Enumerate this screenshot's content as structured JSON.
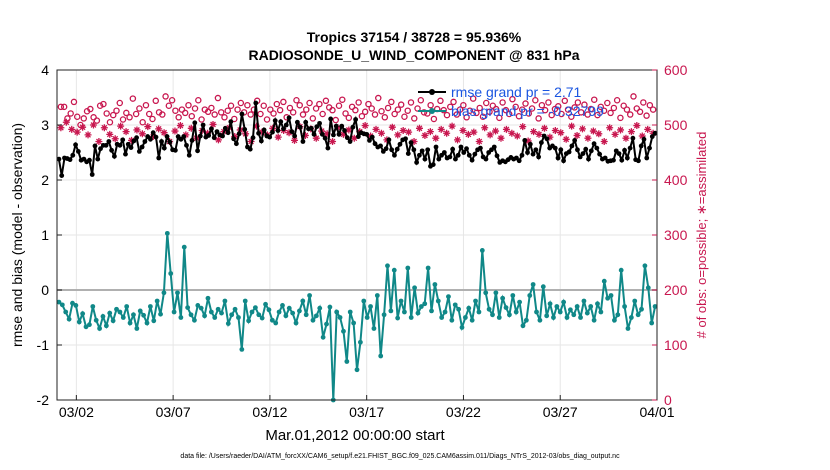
{
  "chart_data": {
    "type": "line",
    "title_line1": "Tropics 37154 / 38728 = 95.936%",
    "title_line2": "RADIOSONDE_U_WIND_COMPONENT @ 831 hPa",
    "xlabel": "Mar.01,2012 00:00:00 start",
    "ylabel_left": "rmse and bias (model - observation)",
    "ylabel_right": "# of obs: o=possible; ∗=assimilated",
    "footer": "data file: /Users/raeder/DAI/ATM_forcXX/CAM6_setup/f.e21.FHIST_BGC.f09_025.CAM6assim.011/Diags_NTrS_2012-03/obs_diag_output.nc",
    "xlim": [
      0,
      31
    ],
    "ylim_left": [
      -2,
      4
    ],
    "ylim_right": [
      0,
      600
    ],
    "xticks": [
      1,
      6,
      11,
      16,
      21,
      26,
      31
    ],
    "xtick_labels": [
      "03/02",
      "03/07",
      "03/12",
      "03/17",
      "03/22",
      "03/27",
      "04/01"
    ],
    "yticks_left": [
      -2,
      -1,
      0,
      1,
      2,
      3,
      4
    ],
    "yticks_right": [
      0,
      100,
      200,
      300,
      400,
      500,
      600
    ],
    "zero_line": 0,
    "legend": [
      {
        "label": "rmse grand pr = 2.71",
        "color": "#000000"
      },
      {
        "label": "bias grand pr = -0.32799",
        "color": "#108888"
      }
    ],
    "colors": {
      "rmse": "#000000",
      "bias": "#108888",
      "obs": "#c8174f",
      "zero": "#b0b0b0"
    },
    "rmse": [
      2.38,
      2.08,
      2.4,
      2.39,
      2.37,
      2.45,
      2.64,
      2.52,
      2.36,
      2.38,
      2.33,
      2.36,
      2.1,
      2.62,
      2.38,
      2.57,
      2.63,
      2.63,
      2.7,
      2.54,
      2.43,
      2.65,
      2.63,
      2.73,
      2.47,
      2.65,
      2.59,
      2.71,
      2.77,
      2.52,
      2.6,
      2.7,
      2.79,
      2.74,
      2.86,
      2.78,
      2.4,
      2.7,
      2.58,
      2.79,
      2.69,
      2.55,
      2.54,
      2.79,
      2.74,
      2.79,
      2.63,
      2.45,
      2.72,
      3.04,
      2.53,
      2.8,
      3.0,
      2.78,
      2.81,
      2.93,
      2.77,
      2.88,
      2.82,
      2.8,
      2.94,
      2.86,
      3.06,
      2.75,
      2.66,
      2.84,
      3.2,
      2.92,
      2.6,
      2.56,
      2.77,
      3.4,
      2.85,
      2.71,
      2.91,
      2.8,
      2.78,
      2.87,
      3.08,
      2.9,
      3.06,
      2.93,
      3.0,
      3.13,
      2.88,
      2.8,
      3.05,
      2.96,
      2.7,
      3.05,
      2.93,
      2.94,
      2.83,
      2.97,
      3.03,
      2.83,
      2.76,
      2.58,
      3.11,
      2.82,
      2.98,
      2.83,
      2.98,
      2.9,
      2.77,
      2.7,
      2.96,
      3.1,
      2.79,
      2.86,
      2.84,
      2.83,
      2.72,
      2.78,
      2.66,
      2.6,
      2.62,
      2.52,
      2.57,
      2.73,
      2.55,
      2.45,
      2.56,
      2.65,
      2.73,
      2.75,
      2.48,
      2.68,
      2.55,
      2.32,
      2.45,
      2.53,
      2.38,
      2.55,
      2.25,
      2.28,
      2.6,
      2.38,
      2.45,
      2.5,
      2.4,
      2.42,
      2.56,
      2.38,
      2.45,
      2.6,
      2.5,
      2.57,
      2.45,
      2.36,
      2.47,
      2.55,
      2.58,
      2.42,
      2.38,
      2.5,
      2.55,
      2.6,
      2.44,
      2.32,
      2.35,
      2.33,
      2.37,
      2.41,
      2.38,
      2.4,
      2.35,
      2.45,
      2.72,
      2.5,
      2.65,
      2.47,
      2.55,
      2.42,
      2.68,
      2.8,
      2.75,
      2.58,
      2.62,
      2.58,
      2.4,
      2.55,
      2.35,
      2.48,
      2.51,
      2.62,
      2.72,
      2.55,
      2.42,
      2.48,
      2.56,
      2.38,
      2.53,
      2.66,
      2.58,
      2.47,
      2.38,
      2.4,
      2.34,
      2.35,
      2.36,
      2.53,
      2.48,
      2.36,
      2.54,
      2.4,
      2.58,
      2.76,
      2.37,
      2.35,
      2.62,
      2.74,
      2.4,
      2.58,
      2.79,
      2.85
    ],
    "bias": [
      -0.22,
      -0.27,
      -0.4,
      -0.53,
      -0.24,
      -0.28,
      -0.58,
      -0.43,
      -0.67,
      -0.63,
      -0.3,
      -0.55,
      -0.7,
      -0.48,
      -0.65,
      -0.42,
      -0.56,
      -0.35,
      -0.4,
      -0.5,
      -0.3,
      -0.6,
      -0.45,
      -0.7,
      -0.38,
      -0.46,
      -0.6,
      -0.3,
      -0.56,
      -0.2,
      -0.44,
      -0.05,
      1.03,
      0.3,
      -0.4,
      -0.05,
      -0.5,
      0.78,
      -0.32,
      -0.45,
      -0.55,
      -0.28,
      -0.33,
      -0.47,
      -0.15,
      -0.4,
      -0.5,
      -0.35,
      -0.42,
      -0.2,
      -0.61,
      -0.45,
      -0.35,
      -0.5,
      -1.08,
      -0.2,
      -0.56,
      -0.4,
      -0.32,
      -0.45,
      -0.51,
      -0.26,
      -0.36,
      -0.55,
      -0.6,
      -0.4,
      -0.28,
      -0.47,
      -0.33,
      -0.42,
      -0.6,
      -0.38,
      -0.2,
      -0.45,
      -0.1,
      -0.55,
      -0.47,
      -0.33,
      -0.86,
      -0.62,
      -0.31,
      -2.0,
      -0.4,
      -0.5,
      -0.75,
      -1.3,
      -0.4,
      -0.6,
      -1.45,
      -0.95,
      -0.2,
      -0.5,
      -0.3,
      -0.7,
      -0.1,
      -1.2,
      -0.45,
      0.44,
      -0.38,
      0.36,
      -0.51,
      -0.2,
      -0.4,
      0.4,
      -0.5,
      0.04,
      -0.42,
      -0.3,
      -0.25,
      0.4,
      -0.38,
      0.1,
      -0.2,
      -0.5,
      -0.4,
      -0.12,
      -0.55,
      -0.27,
      -0.35,
      -0.68,
      -0.5,
      -0.33,
      -0.55,
      -0.2,
      -0.4,
      0.72,
      -0.05,
      -0.35,
      -0.45,
      -0.05,
      -0.5,
      -0.15,
      -0.32,
      -0.45,
      -0.1,
      -0.4,
      -0.22,
      -0.65,
      -0.55,
      -0.1,
      0.1,
      -0.4,
      -0.55,
      0.06,
      -0.47,
      -0.25,
      -0.5,
      -0.3,
      -0.4,
      -0.22,
      -0.5,
      -0.36,
      -0.45,
      -0.3,
      -0.5,
      -0.2,
      -0.42,
      -0.3,
      -0.55,
      -0.25,
      -0.4,
      0.16,
      -0.15,
      -0.1,
      -0.55,
      -0.45,
      0.36,
      -0.3,
      -0.7,
      -0.5,
      -0.2,
      -0.45,
      -0.35,
      0.44,
      0.04,
      -0.6,
      -0.3
    ],
    "obs_possible": [
      533,
      533,
      512,
      521,
      542,
      515,
      500,
      512,
      525,
      529,
      514,
      508,
      535,
      538,
      521,
      505,
      518,
      526,
      540,
      510,
      522,
      514,
      548,
      520,
      530,
      505,
      536,
      520,
      511,
      544,
      523,
      519,
      552,
      535,
      545,
      526,
      514,
      528,
      522,
      536,
      516,
      530,
      545,
      510,
      528,
      524,
      531,
      519,
      549,
      523,
      514,
      526,
      535,
      511,
      528,
      540,
      523,
      536,
      519,
      528,
      544,
      520,
      535,
      510,
      528,
      521,
      538,
      527,
      542,
      514,
      531,
      523,
      545,
      536,
      519,
      528,
      540,
      512,
      530,
      538,
      520,
      544,
      532,
      527,
      509,
      535,
      546,
      521,
      513,
      533,
      527,
      541,
      516,
      524,
      538,
      530,
      519,
      549,
      525,
      514,
      531,
      542,
      520,
      528,
      537,
      515,
      526,
      541,
      512,
      530,
      545,
      523,
      521,
      536,
      511,
      529,
      544,
      527,
      518,
      533,
      542,
      519,
      528,
      536,
      514,
      526,
      548,
      522,
      531,
      515,
      540,
      524,
      535,
      529,
      513,
      541,
      527,
      520,
      547,
      533,
      516,
      528,
      539,
      521,
      530,
      545,
      512,
      536,
      527,
      541,
      518,
      529,
      534,
      520,
      544,
      528,
      515,
      532,
      541,
      523,
      537,
      519,
      529,
      546,
      518,
      533,
      526,
      540,
      522,
      531,
      545,
      513,
      535,
      528,
      519,
      552,
      530,
      524,
      541,
      517,
      536,
      528
    ],
    "obs_assim": [
      495,
      505,
      492,
      487,
      496,
      482,
      500,
      470,
      495,
      483,
      475,
      498,
      488,
      472,
      491,
      484,
      497,
      479,
      493,
      486,
      470,
      489,
      499,
      482,
      494,
      476,
      490,
      485,
      501,
      473,
      488,
      495,
      479,
      491,
      484,
      470,
      498,
      487,
      482,
      494,
      478,
      490,
      486,
      472,
      497,
      481,
      493,
      476,
      489,
      484,
      470,
      495,
      483,
      491,
      476,
      488,
      499,
      480,
      492,
      485,
      473,
      496,
      482,
      490,
      487,
      470,
      494,
      481,
      488,
      476,
      492,
      485,
      498,
      473,
      490,
      483,
      487,
      470,
      495,
      482,
      489,
      476,
      492,
      485,
      480,
      497,
      471,
      488,
      483,
      494,
      478,
      490,
      486,
      474,
      498,
      481,
      493,
      476,
      489,
      484,
      470,
      495,
      483,
      491,
      476,
      488,
      499,
      480,
      492,
      485
    ]
  }
}
